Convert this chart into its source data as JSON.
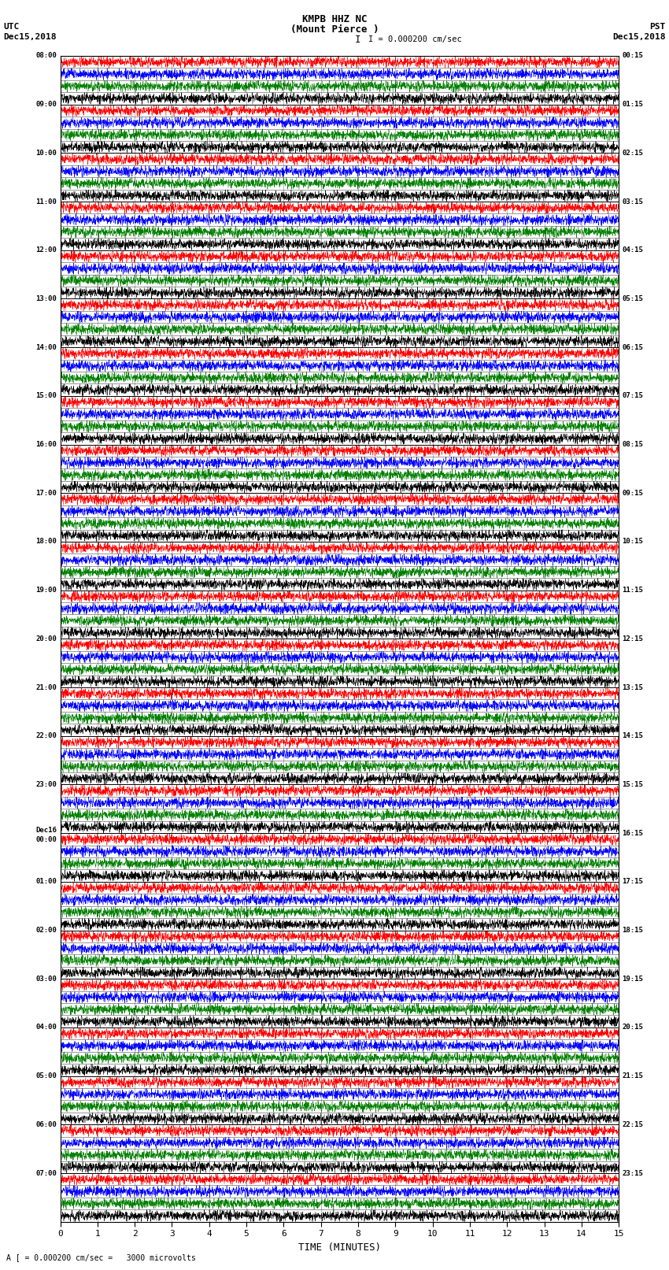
{
  "title_line1": "KMPB HHZ NC",
  "title_line2": "(Mount Pierce )",
  "scale_label": "I = 0.000200 cm/sec",
  "left_timezone": "UTC",
  "left_date": "Dec15,2018",
  "right_timezone": "PST",
  "right_date": "Dec15,2018",
  "left_times": [
    "08:00",
    "09:00",
    "10:00",
    "11:00",
    "12:00",
    "13:00",
    "14:00",
    "15:00",
    "16:00",
    "17:00",
    "18:00",
    "19:00",
    "20:00",
    "21:00",
    "22:00",
    "23:00",
    "Dec16\n00:00",
    "01:00",
    "02:00",
    "03:00",
    "04:00",
    "05:00",
    "06:00",
    "07:00"
  ],
  "right_times": [
    "00:15",
    "01:15",
    "02:15",
    "03:15",
    "04:15",
    "05:15",
    "06:15",
    "07:15",
    "08:15",
    "09:15",
    "10:15",
    "11:15",
    "12:15",
    "13:15",
    "14:15",
    "15:15",
    "16:15",
    "17:15",
    "18:15",
    "19:15",
    "20:15",
    "21:15",
    "22:15",
    "23:15"
  ],
  "xlabel": "TIME (MINUTES)",
  "bottom_label": "A [ = 0.000200 cm/sec =   3000 microvolts",
  "xmin": 0,
  "xmax": 15,
  "xticks": [
    0,
    1,
    2,
    3,
    4,
    5,
    6,
    7,
    8,
    9,
    10,
    11,
    12,
    13,
    14,
    15
  ],
  "num_rows": 24,
  "sub_rows": 4,
  "bg_color": "#ffffff",
  "colors": [
    "red",
    "blue",
    "green",
    "black"
  ],
  "noise_amplitude": 0.42,
  "signal_density": 3000,
  "fig_width": 8.5,
  "fig_height": 16.13,
  "dpi": 100
}
